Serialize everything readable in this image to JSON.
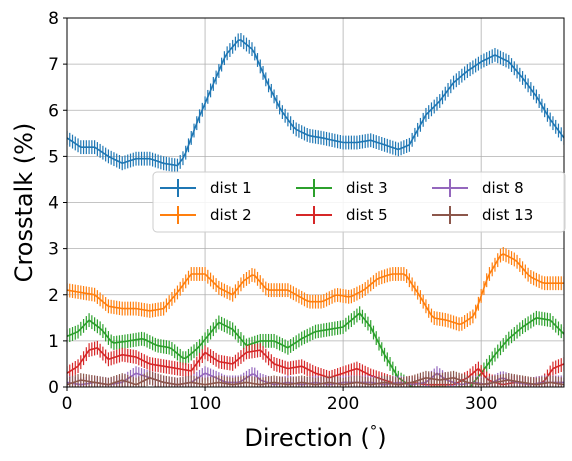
{
  "chart_data": {
    "type": "line",
    "xlabel": "Direction ($^\\circ$)",
    "xlabel_main": "Direction (",
    "xlabel_sup": "°",
    "xlabel_end": ")",
    "ylabel": "Crosstalk (%)",
    "xlim": [
      0,
      360
    ],
    "ylim": [
      0,
      8
    ],
    "x_ticks": [
      0,
      100,
      200,
      300
    ],
    "y_ticks": [
      0,
      1,
      2,
      3,
      4,
      5,
      6,
      7,
      8
    ],
    "x_tick_labels": [
      "0",
      "100",
      "200",
      "300"
    ],
    "y_tick_labels": [
      "0",
      "1",
      "2",
      "3",
      "4",
      "5",
      "6",
      "7",
      "8"
    ],
    "grid": true,
    "error_bars": true,
    "legend_position": "center-right",
    "series": [
      {
        "name": "dist 1",
        "color": "#1f77b4",
        "points": [
          [
            0,
            5.4
          ],
          [
            10,
            5.2
          ],
          [
            20,
            5.2
          ],
          [
            30,
            5.0
          ],
          [
            40,
            4.85
          ],
          [
            50,
            4.95
          ],
          [
            60,
            4.95
          ],
          [
            70,
            4.85
          ],
          [
            80,
            4.8
          ],
          [
            85,
            5.0
          ],
          [
            95,
            5.8
          ],
          [
            105,
            6.5
          ],
          [
            115,
            7.2
          ],
          [
            125,
            7.55
          ],
          [
            135,
            7.3
          ],
          [
            145,
            6.6
          ],
          [
            155,
            6.0
          ],
          [
            165,
            5.6
          ],
          [
            175,
            5.45
          ],
          [
            185,
            5.4
          ],
          [
            200,
            5.3
          ],
          [
            210,
            5.3
          ],
          [
            220,
            5.35
          ],
          [
            230,
            5.25
          ],
          [
            240,
            5.15
          ],
          [
            248,
            5.25
          ],
          [
            260,
            5.9
          ],
          [
            270,
            6.2
          ],
          [
            280,
            6.6
          ],
          [
            290,
            6.85
          ],
          [
            300,
            7.05
          ],
          [
            310,
            7.2
          ],
          [
            320,
            7.05
          ],
          [
            330,
            6.7
          ],
          [
            340,
            6.3
          ],
          [
            350,
            5.8
          ],
          [
            360,
            5.4
          ]
        ],
        "error": 0.15
      },
      {
        "name": "dist 2",
        "color": "#ff7f0e",
        "points": [
          [
            0,
            2.1
          ],
          [
            10,
            2.05
          ],
          [
            20,
            2.0
          ],
          [
            30,
            1.75
          ],
          [
            40,
            1.7
          ],
          [
            50,
            1.7
          ],
          [
            60,
            1.65
          ],
          [
            70,
            1.7
          ],
          [
            80,
            2.05
          ],
          [
            90,
            2.45
          ],
          [
            100,
            2.45
          ],
          [
            110,
            2.15
          ],
          [
            120,
            2.0
          ],
          [
            128,
            2.3
          ],
          [
            135,
            2.45
          ],
          [
            145,
            2.1
          ],
          [
            160,
            2.1
          ],
          [
            175,
            1.85
          ],
          [
            185,
            1.85
          ],
          [
            195,
            2.0
          ],
          [
            205,
            1.95
          ],
          [
            215,
            2.1
          ],
          [
            225,
            2.35
          ],
          [
            235,
            2.45
          ],
          [
            245,
            2.45
          ],
          [
            255,
            2.0
          ],
          [
            265,
            1.5
          ],
          [
            275,
            1.45
          ],
          [
            285,
            1.35
          ],
          [
            295,
            1.55
          ],
          [
            305,
            2.4
          ],
          [
            315,
            2.9
          ],
          [
            325,
            2.75
          ],
          [
            335,
            2.4
          ],
          [
            345,
            2.25
          ],
          [
            360,
            2.25
          ]
        ],
        "error": 0.15
      },
      {
        "name": "dist 3",
        "color": "#2ca02c",
        "points": [
          [
            0,
            1.1
          ],
          [
            8,
            1.2
          ],
          [
            16,
            1.45
          ],
          [
            25,
            1.25
          ],
          [
            33,
            0.95
          ],
          [
            45,
            1.0
          ],
          [
            55,
            1.05
          ],
          [
            65,
            0.9
          ],
          [
            75,
            0.85
          ],
          [
            85,
            0.6
          ],
          [
            95,
            0.85
          ],
          [
            110,
            1.4
          ],
          [
            120,
            1.25
          ],
          [
            130,
            0.9
          ],
          [
            140,
            1.0
          ],
          [
            150,
            1.0
          ],
          [
            160,
            0.85
          ],
          [
            170,
            1.05
          ],
          [
            180,
            1.2
          ],
          [
            190,
            1.25
          ],
          [
            200,
            1.3
          ],
          [
            212,
            1.6
          ],
          [
            220,
            1.3
          ],
          [
            230,
            0.7
          ],
          [
            240,
            0.2
          ],
          [
            250,
            0.0
          ],
          [
            260,
            0.0
          ],
          [
            270,
            0.0
          ],
          [
            280,
            0.0
          ],
          [
            292,
            0.0
          ],
          [
            300,
            0.3
          ],
          [
            310,
            0.7
          ],
          [
            320,
            1.05
          ],
          [
            330,
            1.3
          ],
          [
            340,
            1.5
          ],
          [
            350,
            1.45
          ],
          [
            360,
            1.15
          ]
        ],
        "error": 0.15
      },
      {
        "name": "dist 5",
        "color": "#d62728",
        "points": [
          [
            0,
            0.3
          ],
          [
            8,
            0.45
          ],
          [
            16,
            0.8
          ],
          [
            22,
            0.85
          ],
          [
            30,
            0.6
          ],
          [
            40,
            0.7
          ],
          [
            50,
            0.65
          ],
          [
            60,
            0.5
          ],
          [
            70,
            0.45
          ],
          [
            80,
            0.4
          ],
          [
            90,
            0.35
          ],
          [
            100,
            0.75
          ],
          [
            110,
            0.55
          ],
          [
            120,
            0.5
          ],
          [
            130,
            0.75
          ],
          [
            140,
            0.8
          ],
          [
            150,
            0.5
          ],
          [
            160,
            0.4
          ],
          [
            170,
            0.45
          ],
          [
            180,
            0.3
          ],
          [
            190,
            0.2
          ],
          [
            200,
            0.3
          ],
          [
            210,
            0.4
          ],
          [
            220,
            0.25
          ],
          [
            230,
            0.15
          ],
          [
            240,
            0.05
          ],
          [
            250,
            0.1
          ],
          [
            260,
            0.05
          ],
          [
            270,
            0.05
          ],
          [
            280,
            0.05
          ],
          [
            290,
            0.2
          ],
          [
            298,
            0.4
          ],
          [
            305,
            0.15
          ],
          [
            315,
            0.05
          ],
          [
            325,
            0.1
          ],
          [
            335,
            0.05
          ],
          [
            345,
            0.1
          ],
          [
            352,
            0.4
          ],
          [
            360,
            0.5
          ]
        ],
        "error": 0.15
      },
      {
        "name": "dist 8",
        "color": "#9467bd",
        "points": [
          [
            0,
            0.1
          ],
          [
            10,
            0.05
          ],
          [
            20,
            0.1
          ],
          [
            30,
            0.05
          ],
          [
            40,
            0.1
          ],
          [
            50,
            0.3
          ],
          [
            60,
            0.2
          ],
          [
            70,
            0.1
          ],
          [
            80,
            0.05
          ],
          [
            90,
            0.1
          ],
          [
            100,
            0.3
          ],
          [
            108,
            0.2
          ],
          [
            115,
            0.1
          ],
          [
            125,
            0.1
          ],
          [
            135,
            0.3
          ],
          [
            140,
            0.15
          ],
          [
            150,
            0.05
          ],
          [
            160,
            0.1
          ],
          [
            170,
            0.05
          ],
          [
            180,
            0.1
          ],
          [
            190,
            0.05
          ],
          [
            200,
            0.1
          ],
          [
            210,
            0.1
          ],
          [
            220,
            0.1
          ],
          [
            230,
            0.05
          ],
          [
            240,
            0.1
          ],
          [
            250,
            0.05
          ],
          [
            260,
            0.1
          ],
          [
            268,
            0.3
          ],
          [
            275,
            0.15
          ],
          [
            285,
            0.05
          ],
          [
            295,
            0.1
          ],
          [
            305,
            0.05
          ],
          [
            315,
            0.2
          ],
          [
            325,
            0.1
          ],
          [
            335,
            0.05
          ],
          [
            345,
            0.1
          ],
          [
            360,
            0.1
          ]
        ],
        "error": 0.15
      },
      {
        "name": "dist 13",
        "color": "#8c564b",
        "points": [
          [
            0,
            0.05
          ],
          [
            10,
            0.15
          ],
          [
            20,
            0.1
          ],
          [
            30,
            0.05
          ],
          [
            40,
            0.15
          ],
          [
            50,
            0.05
          ],
          [
            60,
            0.2
          ],
          [
            70,
            0.1
          ],
          [
            80,
            0.05
          ],
          [
            90,
            0.1
          ],
          [
            100,
            0.05
          ],
          [
            110,
            0.1
          ],
          [
            120,
            0.05
          ],
          [
            130,
            0.1
          ],
          [
            140,
            0.05
          ],
          [
            150,
            0.1
          ],
          [
            160,
            0.05
          ],
          [
            170,
            0.1
          ],
          [
            180,
            0.05
          ],
          [
            190,
            0.1
          ],
          [
            200,
            0.05
          ],
          [
            210,
            0.1
          ],
          [
            220,
            0.05
          ],
          [
            230,
            0.1
          ],
          [
            240,
            0.05
          ],
          [
            250,
            0.1
          ],
          [
            260,
            0.2
          ],
          [
            270,
            0.15
          ],
          [
            280,
            0.2
          ],
          [
            290,
            0.1
          ],
          [
            300,
            0.05
          ],
          [
            310,
            0.1
          ],
          [
            320,
            0.15
          ],
          [
            330,
            0.1
          ],
          [
            340,
            0.05
          ],
          [
            350,
            0.1
          ],
          [
            360,
            0.05
          ]
        ],
        "error": 0.15
      }
    ]
  }
}
